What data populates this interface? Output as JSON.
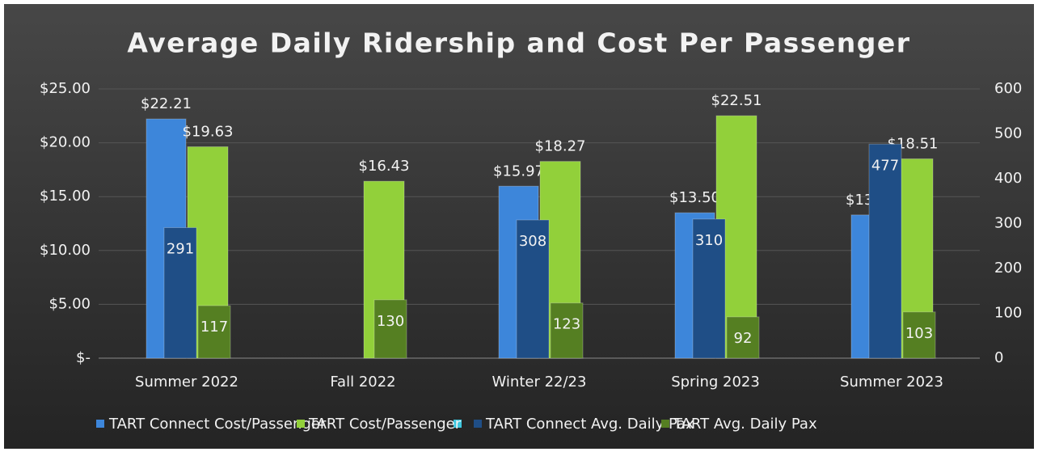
{
  "chart_data": {
    "type": "bar",
    "title": "Average Daily Ridership and Cost Per Passenger",
    "categories": [
      "Summer 2022",
      "Fall 2022",
      "Winter 22/23",
      "Spring 2023",
      "Summer 2023"
    ],
    "series": [
      {
        "name": "TART Connect Cost/Passenger",
        "color": "#3d86da",
        "values": [
          22.21,
          null,
          15.97,
          13.5,
          13.3
        ],
        "value_labels": [
          "$22.21",
          null,
          "$15.97",
          "$13.50",
          "$13.30"
        ]
      },
      {
        "name": "TART Cost/Passenger",
        "color": "#92d03a",
        "values": [
          19.63,
          16.43,
          18.27,
          22.51,
          18.51
        ],
        "value_labels": [
          "$19.63",
          "$16.43",
          "$18.27",
          "$22.51",
          "$18.51"
        ]
      },
      {
        "name": "TART Connect Avg. Daily Pax",
        "color": "#1f4e86",
        "axis": "y2",
        "values": [
          291,
          null,
          308,
          310,
          477
        ]
      },
      {
        "name": "TART Avg. Daily Pax",
        "color": "#557f22",
        "axis": "y2",
        "values": [
          117,
          130,
          123,
          92,
          103
        ]
      }
    ],
    "ylim": [
      0,
      25
    ],
    "yticks": [
      {
        "value": 0,
        "label": "$-"
      },
      {
        "value": 5,
        "label": "$5.00"
      },
      {
        "value": 10,
        "label": "$10.00"
      },
      {
        "value": 15,
        "label": "$15.00"
      },
      {
        "value": 20,
        "label": "$20.00"
      },
      {
        "value": 25,
        "label": "$25.00"
      }
    ],
    "y2lim": [
      0,
      600
    ],
    "y2ticks": [
      0,
      100,
      200,
      300,
      400,
      500,
      600
    ],
    "grid": true,
    "legend": "bottom"
  }
}
